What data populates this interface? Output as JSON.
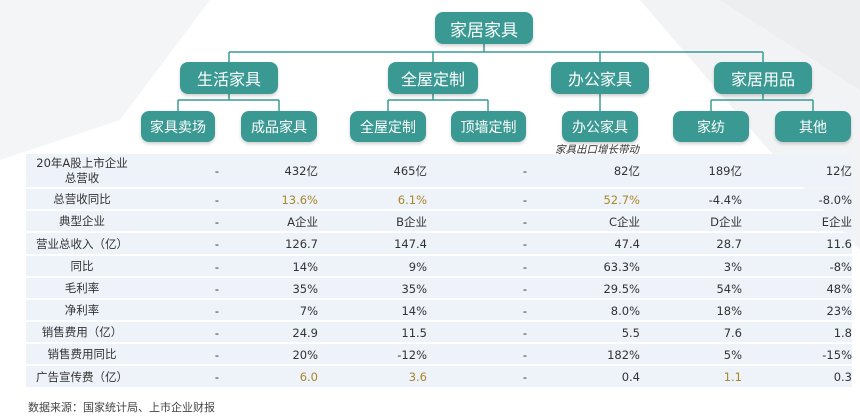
{
  "tree": {
    "root": "家居家具",
    "categories": [
      {
        "label": "生活家具",
        "children": [
          "家具卖场",
          "成品家具"
        ]
      },
      {
        "label": "全屋定制",
        "children": [
          "全屋定制",
          "顶墙定制"
        ]
      },
      {
        "label": "办公家具",
        "children": [
          "办公家具"
        ]
      },
      {
        "label": "家居用品",
        "children": [
          "家纺",
          "其他"
        ]
      }
    ],
    "note": "家具出口增长带动"
  },
  "table": {
    "rows": [
      {
        "label": "20年A股上市企业\n总营收",
        "values": [
          "-",
          "432亿",
          "465亿",
          "-",
          "82亿",
          "189亿",
          "12亿"
        ]
      },
      {
        "label": "总营收同比",
        "values": [
          "-",
          "13.6%",
          "6.1%",
          "-",
          "52.7%",
          "-4.4%",
          "-8.0%"
        ]
      },
      {
        "label": "典型企业",
        "values": [
          "-",
          "A企业",
          "B企业",
          "-",
          "C企业",
          "D企业",
          "E企业"
        ]
      },
      {
        "label": "营业总收入（亿）",
        "values": [
          "-",
          "126.7",
          "147.4",
          "-",
          "47.4",
          "28.7",
          "11.6"
        ]
      },
      {
        "label": "同比",
        "values": [
          "-",
          "14%",
          "9%",
          "-",
          "63.3%",
          "3%",
          "-8%"
        ]
      },
      {
        "label": "毛利率",
        "values": [
          "-",
          "35%",
          "35%",
          "-",
          "29.5%",
          "54%",
          "48%"
        ]
      },
      {
        "label": "净利率",
        "values": [
          "-",
          "7%",
          "14%",
          "-",
          "8.0%",
          "18%",
          "23%"
        ]
      },
      {
        "label": "销售费用（亿）",
        "values": [
          "-",
          "24.9",
          "11.5",
          "-",
          "5.5",
          "7.6",
          "1.8"
        ]
      },
      {
        "label": "销售费用同比",
        "values": [
          "-",
          "20%",
          "-12%",
          "-",
          "182%",
          "5%",
          "-15%"
        ]
      },
      {
        "label": "广告宣传费（亿）",
        "values": [
          "-",
          "6.0",
          "3.6",
          "-",
          "0.4",
          "1.1",
          "0.3"
        ]
      }
    ],
    "highlights": {
      "1": [
        1,
        2,
        4
      ],
      "9": [
        1,
        2,
        5
      ]
    }
  },
  "source": "数据来源：国家统计局、上市企业财报",
  "colors": {
    "node": "#3a9a93",
    "line": "#3a9a93",
    "band": "#eef2f9",
    "highlight": "#a8862a"
  }
}
